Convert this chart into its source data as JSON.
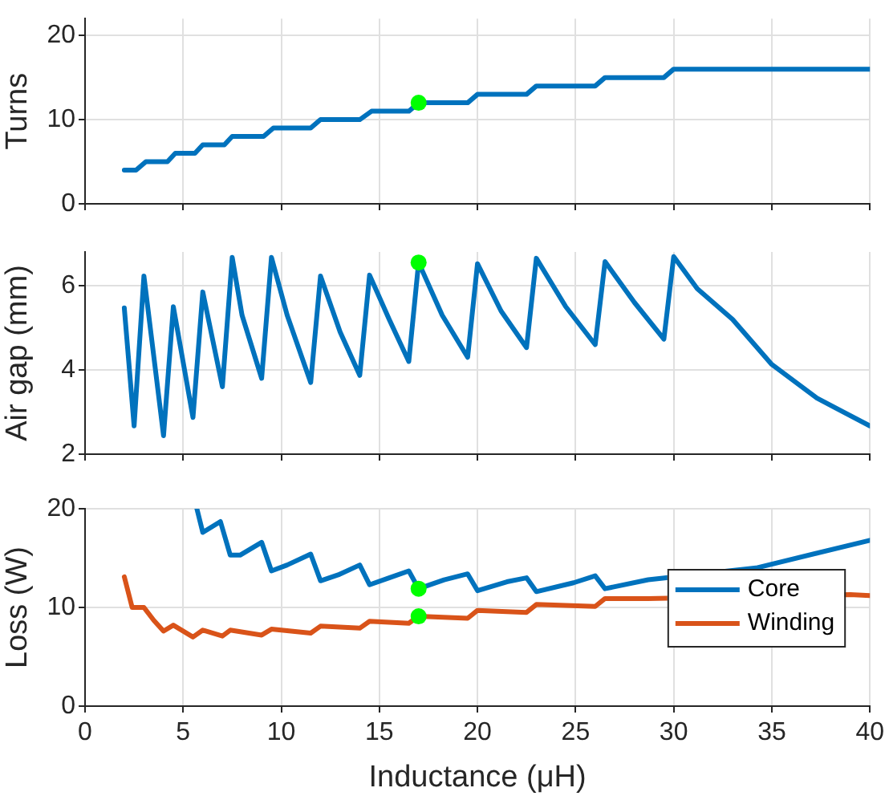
{
  "chart_data": [
    {
      "type": "line",
      "ylabel": "Turns",
      "xlim": [
        0,
        40
      ],
      "xticks": [
        0,
        5,
        10,
        15,
        20,
        25,
        30,
        35,
        40
      ],
      "ylim": [
        0,
        22
      ],
      "yticks": [
        0,
        10,
        20
      ],
      "grid": true,
      "tick_labels": "y",
      "marker": "none",
      "series": [
        {
          "color": "#0072bd",
          "x": [
            2,
            2.6,
            3.1,
            4.2,
            4.6,
            5.6,
            6,
            7.1,
            7.5,
            9.1,
            9.6,
            11.5,
            12,
            14,
            14.6,
            16.5,
            17,
            19.5,
            20,
            22.5,
            23,
            26,
            26.5,
            29.5,
            30,
            40
          ],
          "values": [
            4,
            4,
            5,
            5,
            6,
            6,
            7,
            7,
            8,
            8,
            9,
            9,
            10,
            10,
            11,
            11,
            12,
            12,
            13,
            13,
            14,
            14,
            15,
            15,
            16,
            16
          ]
        },
        {
          "type": "scatter",
          "marker": "circle",
          "color": "#00ff00",
          "x": [
            17
          ],
          "values": [
            12
          ]
        }
      ]
    },
    {
      "type": "line",
      "ylabel": "Air gap (mm)",
      "xlim": [
        0,
        40
      ],
      "xticks": [
        0,
        5,
        10,
        15,
        20,
        25,
        30,
        35,
        40
      ],
      "ylim": [
        2,
        6.8
      ],
      "yticks": [
        2,
        4,
        6
      ],
      "grid": true,
      "tick_labels": "y",
      "marker": "none",
      "series": [
        {
          "color": "#0072bd",
          "x": [
            2,
            2.5,
            3,
            4,
            4.5,
            5.5,
            6,
            7,
            7.5,
            8,
            9,
            9.5,
            10.3,
            11.5,
            12,
            13,
            14,
            14.5,
            15.5,
            16.5,
            17,
            18.2,
            19.5,
            20,
            21.2,
            22.5,
            23,
            24.5,
            26,
            26.5,
            28,
            29.5,
            30,
            31.2,
            33,
            35,
            37.3,
            40
          ],
          "values": [
            5.47,
            2.67,
            6.23,
            2.44,
            5.5,
            2.87,
            5.85,
            3.6,
            6.67,
            5.3,
            3.8,
            6.67,
            5.3,
            3.7,
            6.23,
            4.9,
            3.87,
            6.25,
            5.2,
            4.2,
            6.55,
            5.3,
            4.3,
            6.52,
            5.4,
            4.53,
            6.65,
            5.5,
            4.6,
            6.57,
            5.6,
            4.73,
            6.69,
            5.93,
            5.2,
            4.13,
            3.33,
            2.67
          ]
        },
        {
          "type": "scatter",
          "marker": "circle",
          "color": "#00ff00",
          "x": [
            17
          ],
          "values": [
            6.55
          ]
        }
      ]
    },
    {
      "type": "line",
      "xlabel": "Inductance (μH)",
      "ylabel": "Loss (W)",
      "xlim": [
        0,
        40
      ],
      "xticks": [
        0,
        5,
        10,
        15,
        20,
        25,
        30,
        35,
        40
      ],
      "ylim": [
        0,
        20
      ],
      "yticks": [
        0,
        10,
        20
      ],
      "grid": true,
      "legend": "right",
      "marker": "none",
      "series": [
        {
          "name": "Core",
          "color": "#0072bd",
          "x": [
            5.7,
            6,
            6.9,
            7.4,
            7.9,
            9,
            9.5,
            10.3,
            11.5,
            12,
            12.9,
            14,
            14.5,
            15.5,
            16.5,
            17,
            18.3,
            19.5,
            20,
            21.5,
            22.5,
            23,
            24.9,
            26,
            26.5,
            28.7,
            34.2,
            40
          ],
          "values": [
            20,
            17.6,
            18.7,
            15.3,
            15.3,
            16.6,
            13.7,
            14.3,
            15.4,
            12.7,
            13.3,
            14.3,
            12.3,
            13,
            13.7,
            11.9,
            12.8,
            13.4,
            11.7,
            12.6,
            13,
            11.6,
            12.5,
            13.2,
            11.9,
            12.8,
            14,
            16.8
          ]
        },
        {
          "name": "Winding",
          "color": "#d95319",
          "x": [
            2,
            2.4,
            3,
            3.5,
            4,
            4.5,
            5.5,
            6,
            7,
            7.4,
            9,
            9.5,
            11.5,
            12,
            14,
            14.5,
            16.5,
            17,
            19.5,
            20,
            22.5,
            23,
            26,
            26.5,
            28.7,
            39,
            40
          ],
          "values": [
            13.1,
            10,
            10,
            8.7,
            7.6,
            8.2,
            7,
            7.7,
            7.1,
            7.7,
            7.2,
            7.8,
            7.4,
            8.1,
            7.9,
            8.6,
            8.4,
            9.1,
            8.9,
            9.7,
            9.5,
            10.3,
            10.1,
            10.9,
            10.9,
            11.3,
            11.2
          ]
        },
        {
          "type": "scatter",
          "marker": "circle",
          "color": "#00ff00",
          "x": [
            17,
            17
          ],
          "values": [
            11.9,
            9.1
          ]
        }
      ]
    }
  ]
}
